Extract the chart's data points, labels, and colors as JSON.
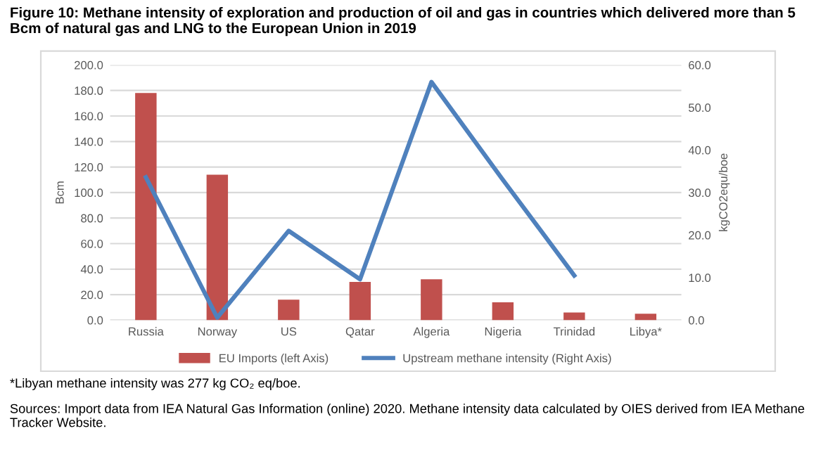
{
  "chart_data": {
    "type": "bar",
    "title": "Figure 10: Methane intensity of exploration and production of oil and gas in countries which delivered more than 5 Bcm of natural gas and LNG to the European Union in 2019",
    "categories": [
      "Russia",
      "Norway",
      "US",
      "Qatar",
      "Algeria",
      "Nigeria",
      "Trinidad",
      "Libya*"
    ],
    "series": [
      {
        "name": "EU Imports (left Axis)",
        "color": "#c0504d",
        "values": [
          178,
          114,
          16,
          30,
          32,
          14,
          6,
          5
        ]
      },
      {
        "name": "Upstream methane intensity (Right Axis)",
        "type": "line",
        "axis": "y2",
        "color": "#4f81bd",
        "values": [
          33.6,
          0.6,
          21,
          9.6,
          56,
          33,
          10.5,
          null
        ]
      }
    ],
    "ylabel": "Bcm",
    "y2label": "kgCO2equ/boe",
    "ylim": [
      0,
      200
    ],
    "yticks": [
      {
        "value": 0,
        "label": "0.0"
      },
      {
        "value": 20,
        "label": "20.0"
      },
      {
        "value": 40,
        "label": "40.0"
      },
      {
        "value": 60,
        "label": "60.0"
      },
      {
        "value": 80,
        "label": "80.0"
      },
      {
        "value": 100,
        "label": "100.0"
      },
      {
        "value": 120,
        "label": "120.0"
      },
      {
        "value": 140,
        "label": "140.0"
      },
      {
        "value": 160,
        "label": "160.0"
      },
      {
        "value": 180,
        "label": "180.0"
      },
      {
        "value": 200,
        "label": "200.0"
      }
    ],
    "y2lim": [
      0,
      60
    ],
    "y2ticks": [
      {
        "value": 0,
        "label": "0.0"
      },
      {
        "value": 10,
        "label": "10.0"
      },
      {
        "value": 20,
        "label": "20.0"
      },
      {
        "value": 30,
        "label": "30.0"
      },
      {
        "value": 40,
        "label": "40.0"
      },
      {
        "value": 50,
        "label": "50.0"
      },
      {
        "value": 60,
        "label": "60.0"
      }
    ],
    "grid": "y",
    "legend": "bottom",
    "annotations": [
      "*Libyan methane intensity was 277 kg CO₂ eq/boe.",
      "Sources: Import data from IEA Natural Gas Information (online) 2020. Methane intensity data calculated by OIES derived from IEA Methane Tracker Website."
    ]
  }
}
